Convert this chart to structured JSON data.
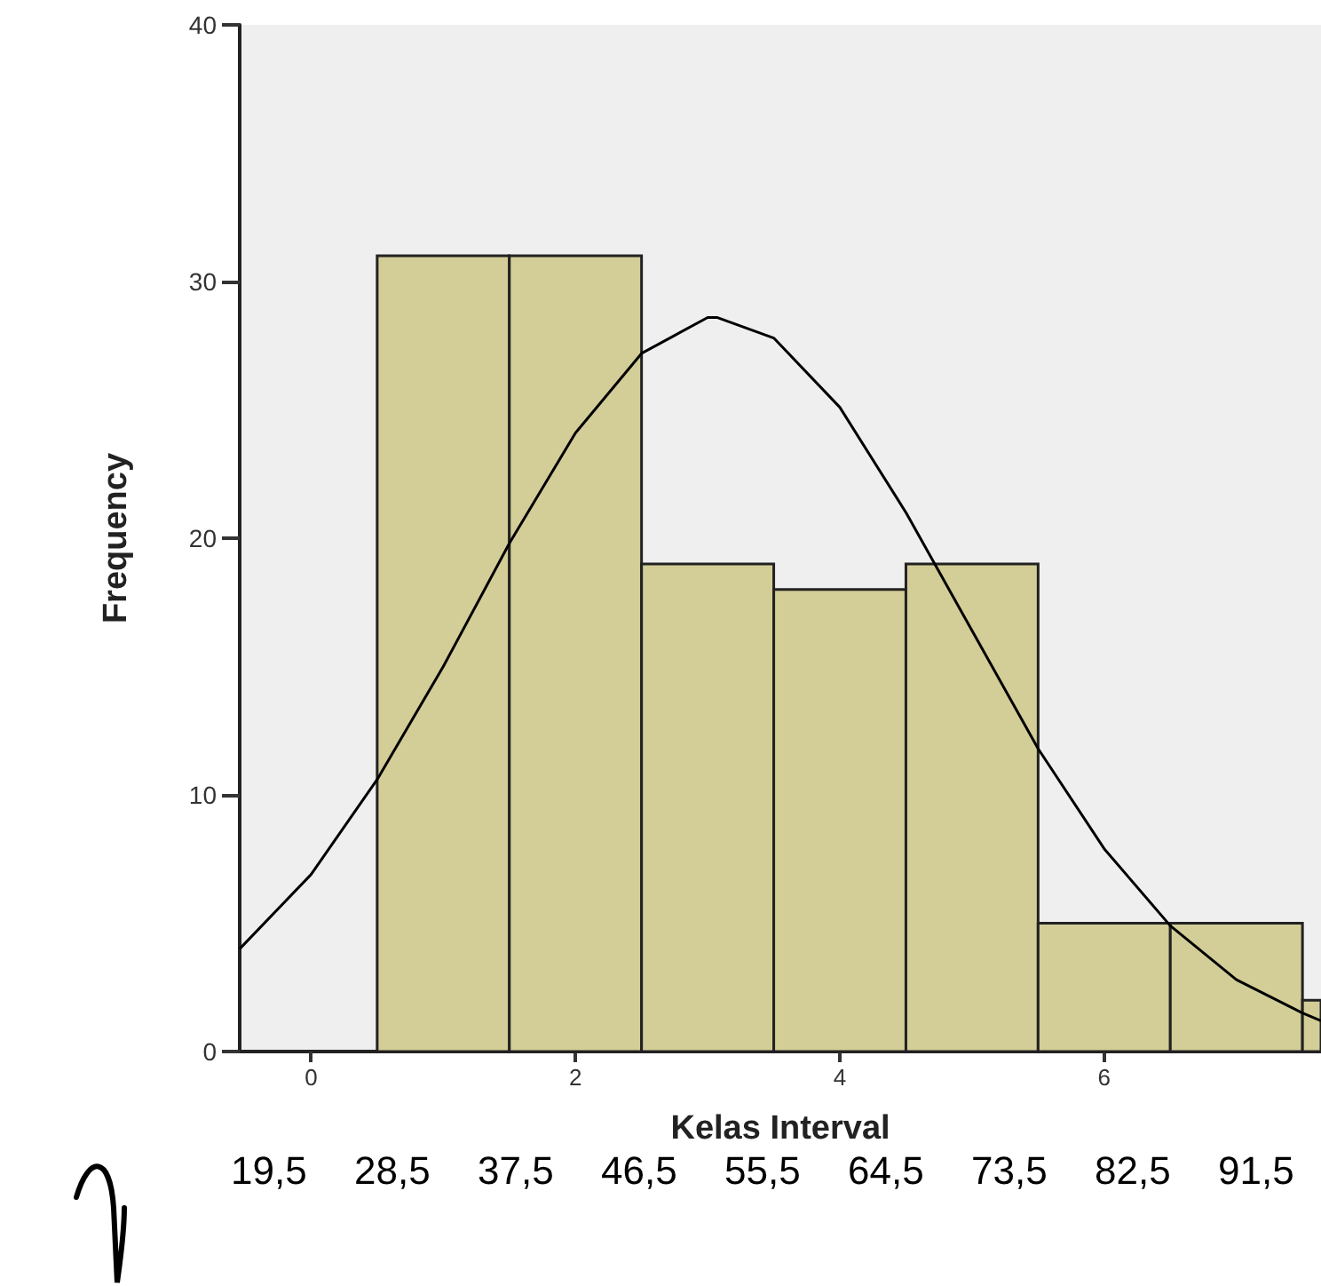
{
  "chart_data": {
    "type": "histogram",
    "xlabel": "Kelas Interval",
    "ylabel": "Frequency",
    "bins": [
      0.5,
      1.5,
      2.5,
      3.5,
      4.5,
      5.5,
      6.5,
      7.5,
      7.64
    ],
    "values": [
      31,
      31,
      19,
      18,
      19,
      5,
      5,
      2
    ],
    "color": "#d3ce97",
    "series": [
      {
        "type": "line",
        "color": "#000000",
        "x": [
          -0.54,
          0,
          0.5,
          1,
          1.5,
          2,
          2.5,
          3,
          3.07,
          3.5,
          4,
          4.5,
          5,
          5.5,
          6,
          6.5,
          7,
          7.5,
          7.64
        ],
        "values": [
          4.0,
          6.9,
          10.6,
          15.0,
          19.8,
          24.1,
          27.2,
          28.6,
          28.6,
          27.8,
          25.1,
          21.0,
          16.4,
          11.8,
          7.9,
          4.9,
          2.8,
          1.5,
          1.2
        ]
      }
    ],
    "xlim": [
      -0.54,
      7.64
    ],
    "xticks": [
      0,
      2,
      4,
      6
    ],
    "ylim": [
      0,
      40
    ],
    "yticks": [
      0,
      10,
      20,
      30,
      40
    ],
    "grid": false,
    "marker": "none",
    "line_style": "solid",
    "annotations": [
      "19,5",
      "28,5",
      "37,5",
      "46,5",
      "55,5",
      "64,5",
      "73,5",
      "82,5",
      "91,5"
    ]
  }
}
